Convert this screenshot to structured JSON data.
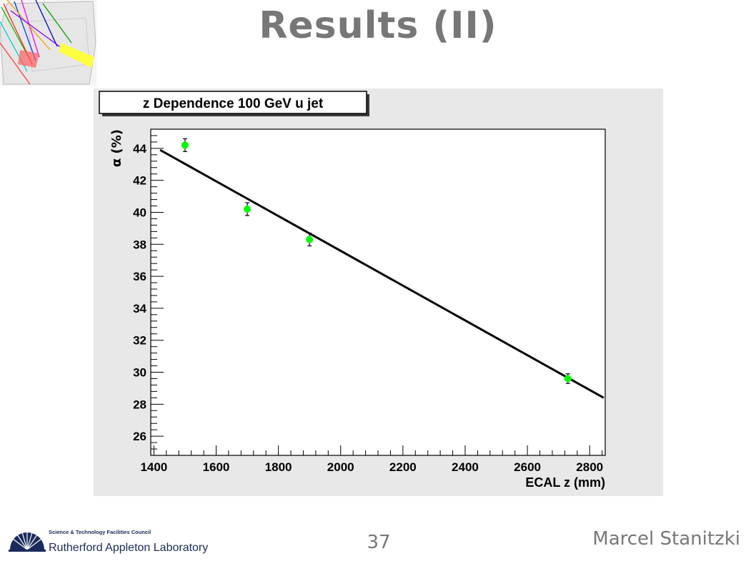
{
  "slide": {
    "title": "Results (II)",
    "slide_number": "37",
    "author": "Marcel Stanitzki",
    "logo": {
      "council": "Science & Technology Facilities Council",
      "lab": "Rutherford Appleton Laboratory"
    }
  },
  "colors": {
    "title": "#777777",
    "frame_bg": "#e8e8e8",
    "marker": "#00ff00",
    "fit_line": "#000000",
    "logo_blue": "#1b2a5c"
  },
  "chart_data": {
    "type": "scatter",
    "title": "z Dependence 100 GeV u jet",
    "xlabel": "ECAL z (mm)",
    "ylabel": "α (%)",
    "xlim": [
      1390,
      2850
    ],
    "ylim": [
      24.8,
      45.2
    ],
    "x_ticks": [
      1400,
      1600,
      1800,
      2000,
      2200,
      2400,
      2600,
      2800
    ],
    "y_ticks": [
      26,
      28,
      30,
      32,
      34,
      36,
      38,
      40,
      42,
      44
    ],
    "grid": false,
    "series": [
      {
        "x": [
          1500,
          1700,
          1900,
          2730
        ],
        "y": [
          44.2,
          40.2,
          38.3,
          29.6
        ],
        "yerr": [
          0.4,
          0.4,
          0.4,
          0.3
        ]
      }
    ],
    "fit": {
      "x": [
        1420,
        2845
      ],
      "y": [
        43.9,
        28.4
      ]
    }
  }
}
